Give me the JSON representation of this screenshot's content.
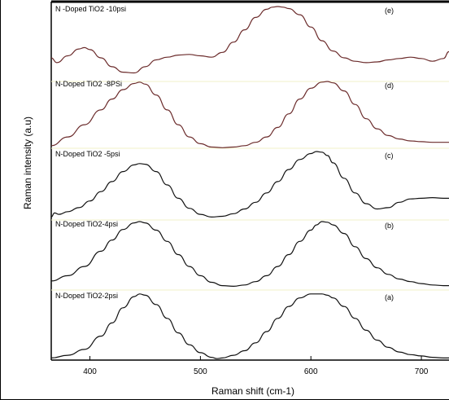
{
  "chart_data": {
    "type": "line",
    "title": "",
    "xlabel": "Raman shift (cm-1)",
    "ylabel": "Raman intensity (a.u)",
    "xlim": [
      365,
      725
    ],
    "xticks": [
      400,
      500,
      600,
      700
    ],
    "stacked": true,
    "grid": false,
    "colors": {
      "frame": "#000000",
      "divider": "#f2f2c8",
      "black_trace": "#111111",
      "brown_trace": "#6b2b2b"
    },
    "series": [
      {
        "name": "N-Doped TiO2-2psi",
        "tag": "(a)",
        "color": "#111111",
        "x": [
          365,
          380,
          395,
          410,
          420,
          430,
          440,
          445,
          450,
          460,
          470,
          480,
          490,
          500,
          510,
          515,
          520,
          530,
          540,
          550,
          560,
          570,
          580,
          590,
          600,
          610,
          615,
          620,
          630,
          640,
          650,
          660,
          670,
          680,
          690,
          700,
          710,
          720,
          725
        ],
        "y": [
          0.02,
          0.06,
          0.15,
          0.35,
          0.55,
          0.78,
          0.95,
          0.99,
          0.97,
          0.83,
          0.62,
          0.4,
          0.22,
          0.1,
          0.03,
          0.01,
          0.02,
          0.06,
          0.13,
          0.25,
          0.42,
          0.62,
          0.8,
          0.93,
          0.99,
          0.99,
          0.97,
          0.93,
          0.8,
          0.62,
          0.44,
          0.29,
          0.18,
          0.11,
          0.07,
          0.05,
          0.03,
          0.02,
          0.02
        ]
      },
      {
        "name": "N-Doped TiO2-4psi",
        "tag": "(b)",
        "color": "#111111",
        "x": [
          365,
          380,
          395,
          410,
          420,
          430,
          440,
          445,
          450,
          460,
          470,
          480,
          490,
          500,
          510,
          520,
          530,
          540,
          550,
          560,
          570,
          580,
          590,
          600,
          605,
          610,
          615,
          620,
          630,
          640,
          650,
          660,
          670,
          680,
          690,
          700,
          710,
          720,
          725
        ],
        "y": [
          0.1,
          0.18,
          0.32,
          0.55,
          0.72,
          0.88,
          0.98,
          1.0,
          0.98,
          0.87,
          0.7,
          0.5,
          0.32,
          0.18,
          0.08,
          0.03,
          0.02,
          0.04,
          0.09,
          0.18,
          0.32,
          0.5,
          0.7,
          0.87,
          0.95,
          1.0,
          0.99,
          0.95,
          0.82,
          0.62,
          0.44,
          0.3,
          0.2,
          0.13,
          0.09,
          0.06,
          0.04,
          0.03,
          0.03
        ]
      },
      {
        "name": "N-Doped TiO2 -5psi",
        "tag": "(c)",
        "color": "#111111",
        "x": [
          365,
          368,
          372,
          380,
          390,
          400,
          410,
          420,
          430,
          440,
          445,
          450,
          460,
          470,
          480,
          490,
          500,
          510,
          520,
          530,
          540,
          550,
          560,
          570,
          580,
          590,
          600,
          605,
          610,
          615,
          620,
          630,
          640,
          650,
          660,
          670,
          680,
          690,
          700,
          710,
          720,
          725
        ],
        "y": [
          0.02,
          0.08,
          0.06,
          0.1,
          0.16,
          0.26,
          0.4,
          0.55,
          0.7,
          0.8,
          0.82,
          0.81,
          0.7,
          0.5,
          0.3,
          0.15,
          0.06,
          0.02,
          0.03,
          0.07,
          0.14,
          0.24,
          0.38,
          0.55,
          0.73,
          0.88,
          0.97,
          1.0,
          0.99,
          0.94,
          0.83,
          0.6,
          0.38,
          0.22,
          0.14,
          0.16,
          0.24,
          0.29,
          0.3,
          0.31,
          0.3,
          0.3
        ]
      },
      {
        "name": "N-Doped TiO2 -8PSi",
        "tag": "(d)",
        "color": "#6b2b2b",
        "x": [
          365,
          380,
          395,
          410,
          420,
          430,
          440,
          445,
          450,
          460,
          470,
          480,
          490,
          500,
          510,
          520,
          530,
          540,
          550,
          560,
          570,
          580,
          590,
          600,
          610,
          615,
          620,
          630,
          640,
          650,
          660,
          670,
          680,
          690,
          700,
          710,
          720,
          725
        ],
        "y": [
          0.05,
          0.18,
          0.36,
          0.58,
          0.74,
          0.88,
          0.97,
          0.99,
          0.96,
          0.8,
          0.58,
          0.36,
          0.18,
          0.08,
          0.03,
          0.02,
          0.03,
          0.05,
          0.1,
          0.18,
          0.32,
          0.52,
          0.74,
          0.9,
          0.99,
          1.0,
          0.98,
          0.86,
          0.66,
          0.45,
          0.3,
          0.2,
          0.15,
          0.12,
          0.11,
          0.1,
          0.1,
          0.1
        ]
      },
      {
        "name": "N -Doped TiO2 -10psi",
        "tag": "(e)",
        "color": "#6b2b2b",
        "x": [
          365,
          370,
          380,
          390,
          395,
          400,
          410,
          420,
          430,
          440,
          450,
          460,
          470,
          480,
          490,
          500,
          510,
          520,
          530,
          540,
          550,
          560,
          565,
          570,
          575,
          580,
          590,
          600,
          610,
          620,
          630,
          640,
          650,
          660,
          670,
          680,
          690,
          700,
          710,
          720,
          725
        ],
        "y": [
          0.25,
          0.18,
          0.28,
          0.38,
          0.4,
          0.37,
          0.25,
          0.12,
          0.04,
          0.03,
          0.12,
          0.22,
          0.26,
          0.29,
          0.3,
          0.28,
          0.26,
          0.33,
          0.48,
          0.66,
          0.84,
          0.96,
          0.99,
          1.0,
          0.99,
          0.97,
          0.88,
          0.7,
          0.5,
          0.35,
          0.25,
          0.2,
          0.18,
          0.19,
          0.22,
          0.24,
          0.26,
          0.24,
          0.2,
          0.24,
          0.34
        ]
      }
    ]
  }
}
